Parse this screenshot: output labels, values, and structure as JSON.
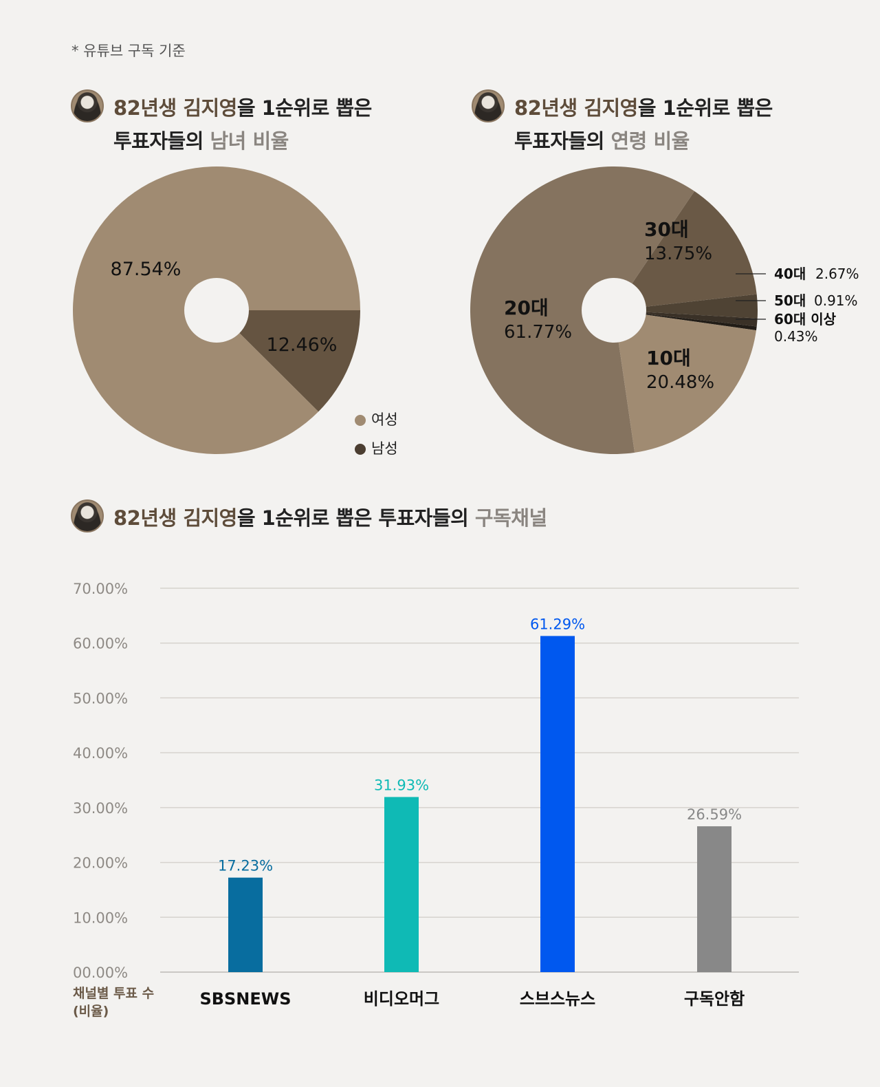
{
  "note": "* 유튜브 구독 기준",
  "gender_title": {
    "line1_brown": "82년생 김지영",
    "line1_dark": "을 1순위로 뽑은",
    "line2_dark": "투표자들의 ",
    "line2_grey": "남녀 비율"
  },
  "age_title": {
    "line1_brown": "82년생 김지영",
    "line1_dark": "을 1순위로 뽑은",
    "line2_dark": "투표자들의 ",
    "line2_grey": "연령 비율"
  },
  "channel_title": {
    "brown": "82년생 김지영",
    "dark": "을 1순위로 뽑은 투표자들의 ",
    "grey": "구독채널"
  },
  "legend": {
    "female": "여성",
    "male": "남성"
  },
  "chart_data": [
    {
      "type": "pie",
      "slices": [
        {
          "label": "여성",
          "value": 87.54,
          "display": "87.54%",
          "color": "#a08b72"
        },
        {
          "label": "남성",
          "value": 12.46,
          "display": "12.46%",
          "color": "#655441"
        }
      ]
    },
    {
      "type": "pie",
      "slices": [
        {
          "label": "10대",
          "value": 20.48,
          "display": "20.48%",
          "color": "#a08b72"
        },
        {
          "label": "20대",
          "value": 61.77,
          "display": "61.77%",
          "color": "#85735f"
        },
        {
          "label": "30대",
          "value": 13.75,
          "display": "13.75%",
          "color": "#6a5946"
        },
        {
          "label": "40대",
          "value": 2.67,
          "display": "2.67%",
          "color": "#4f4334"
        },
        {
          "label": "50대",
          "value": 0.91,
          "display": "0.91%",
          "color": "#3a3127"
        },
        {
          "label": "60대 이상",
          "value": 0.43,
          "display": "0.43%",
          "color": "#221d17"
        }
      ]
    },
    {
      "type": "bar",
      "categories": [
        "SBSNEWS",
        "비디오머그",
        "스브스뉴스",
        "구독안함"
      ],
      "values": [
        17.23,
        31.93,
        61.29,
        26.59
      ],
      "value_labels": [
        "17.23%",
        "31.93%",
        "61.29%",
        "26.59%"
      ],
      "colors": [
        "#086d9f",
        "#0fbab5",
        "#0058ef",
        "#888888"
      ],
      "ylim": [
        0,
        70
      ],
      "yticks": [
        "00.00%",
        "10.00%",
        "20.00%",
        "30.00%",
        "40.00%",
        "50.00%",
        "60.00%",
        "70.00%"
      ],
      "xlabel": "채널별 투표 수",
      "xlabel2": "(비율)",
      "grid": true
    }
  ]
}
